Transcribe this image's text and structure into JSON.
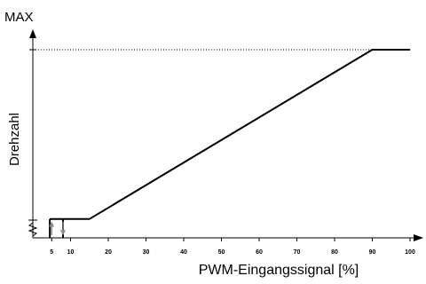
{
  "chart_data": {
    "type": "line",
    "title": "",
    "xlabel": "PWM-Eingangssignal [%]",
    "ylabel": "Drehzahl",
    "y_max_label": "MAX",
    "xlim": [
      0,
      100
    ],
    "ylim": [
      0,
      100
    ],
    "x_ticks": [
      5,
      10,
      20,
      30,
      40,
      50,
      60,
      70,
      80,
      90,
      100
    ],
    "x_tick_labels": [
      "5",
      "10",
      "20",
      "30",
      "40",
      "50",
      "60",
      "70",
      "80",
      "90",
      "100"
    ],
    "y_scale_break": true,
    "grid": false,
    "legend": "none",
    "series": [
      {
        "x": [
          4.5,
          15,
          90,
          100
        ],
        "y": [
          10,
          10,
          100,
          100
        ]
      }
    ],
    "hysteresis": {
      "x_start": 4.5,
      "x_end": 8,
      "rising_arrow_x": 5,
      "falling_arrow_x": 8
    },
    "max_reference_line": {
      "y": 100,
      "style": "dotted"
    },
    "colors": {
      "line": "#000000",
      "axis": "#000000",
      "arrows": "#8a8a8a",
      "reference_line": "#000000"
    }
  }
}
